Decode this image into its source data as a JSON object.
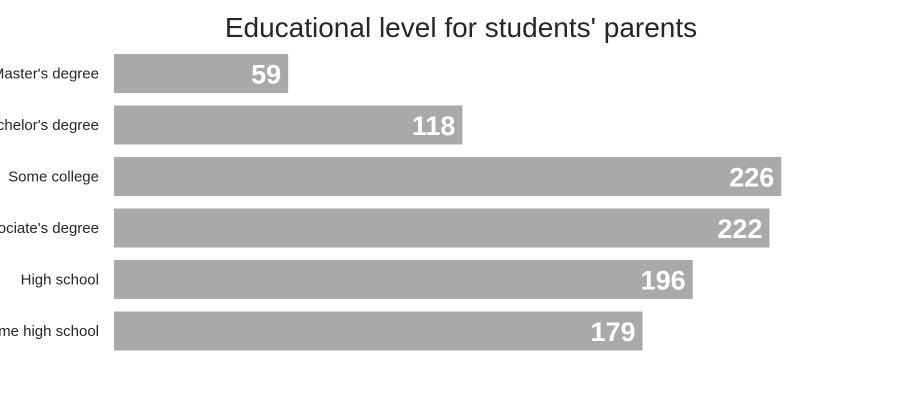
{
  "chart_data": {
    "type": "bar",
    "orientation": "horizontal",
    "title": "Educational level for students' parents",
    "categories": [
      "Master's degree",
      "Bachelor's degree",
      "Some college",
      "Associate's degree",
      "High school",
      "Some high school"
    ],
    "values": [
      59,
      118,
      226,
      222,
      196,
      179
    ],
    "xlabel": "",
    "ylabel": "",
    "xlim": [
      0,
      232
    ],
    "grid": false,
    "legend": "none",
    "bar_color": "#a9a9a9",
    "value_label_color": "#ffffff"
  }
}
